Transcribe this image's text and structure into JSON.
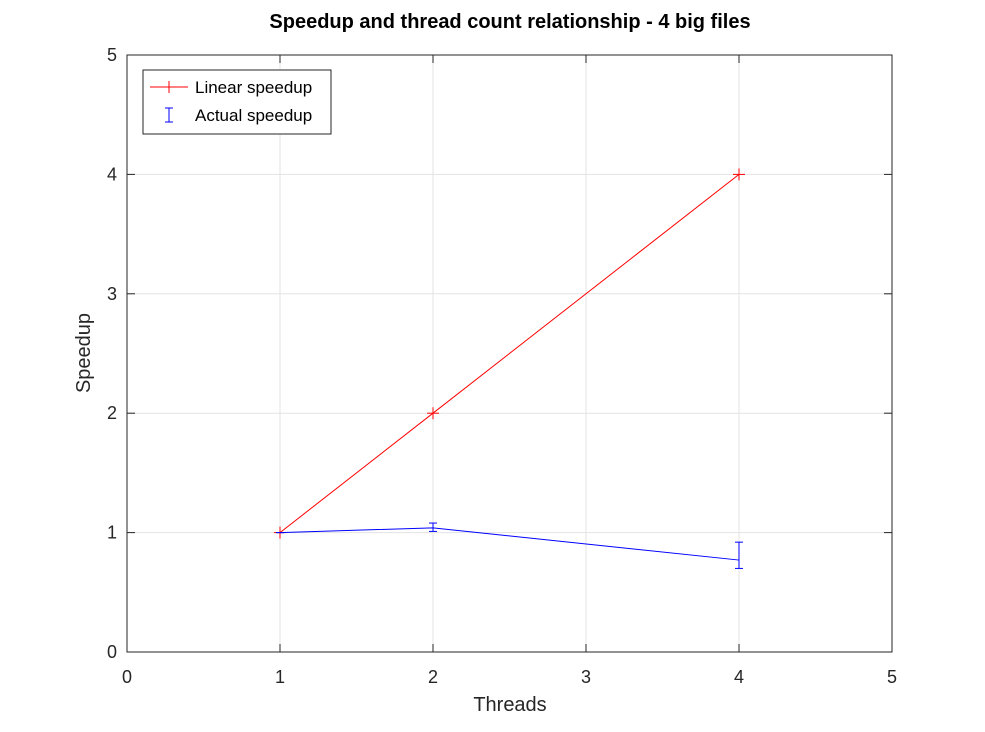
{
  "chart_data": {
    "type": "line",
    "title": "Speedup and thread count relationship - 4 big files",
    "xlabel": "Threads",
    "ylabel": "Speedup",
    "xlim": [
      0,
      5
    ],
    "ylim": [
      0,
      5
    ],
    "xticks": [
      0,
      1,
      2,
      3,
      4,
      5
    ],
    "yticks": [
      0,
      1,
      2,
      3,
      4,
      5
    ],
    "grid": true,
    "legend_position": "top-left",
    "series": [
      {
        "name": "Linear speedup",
        "color": "#ff0000",
        "marker": "plus",
        "x": [
          1,
          2,
          4
        ],
        "y": [
          1,
          2,
          4
        ]
      },
      {
        "name": "Actual speedup",
        "color": "#0000ff",
        "marker": "errorbar",
        "x": [
          1,
          2,
          4
        ],
        "y": [
          1.0,
          1.04,
          0.77
        ],
        "err_low": [
          0.0,
          0.03,
          0.07
        ],
        "err_high": [
          0.0,
          0.04,
          0.15
        ]
      }
    ]
  }
}
